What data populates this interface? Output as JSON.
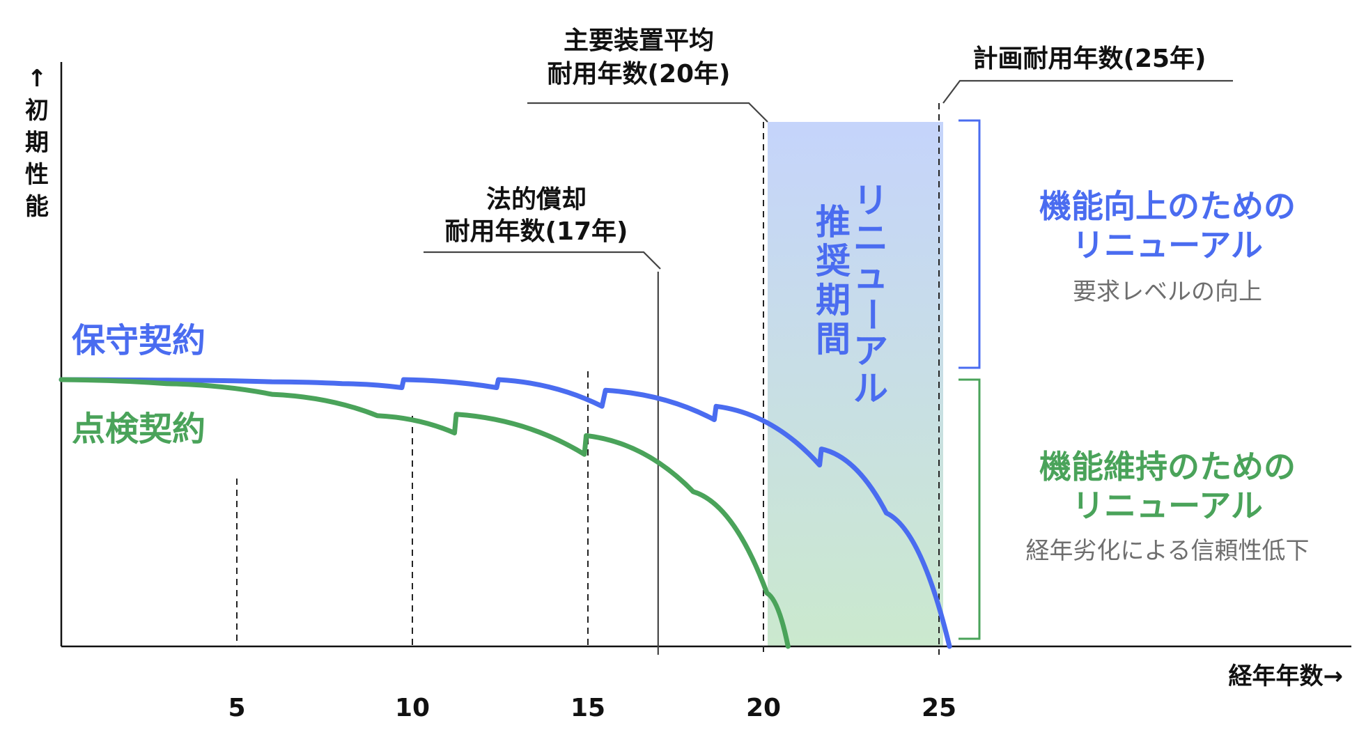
{
  "chart_data": {
    "type": "line",
    "y_axis_label": "↑初期性能",
    "x_axis_label": "経年年数→",
    "x_ticks": [
      5,
      10,
      15,
      20,
      25
    ],
    "series": [
      {
        "name": "保守契約",
        "color": "#4a6cf0",
        "x": [
          0,
          3,
          6,
          8,
          9.7,
          9.75,
          12.4,
          12.45,
          15.4,
          15.5,
          18.6,
          18.65,
          21.6,
          21.65,
          23.5,
          25.3
        ],
        "y": [
          1.0,
          0.998,
          0.992,
          0.985,
          0.97,
          1.0,
          0.97,
          1.0,
          0.9,
          0.96,
          0.85,
          0.9,
          0.68,
          0.74,
          0.5,
          0.0
        ]
      },
      {
        "name": "点検契約",
        "color": "#4aa35a",
        "x": [
          0,
          3,
          6,
          9,
          11.2,
          11.25,
          14.9,
          14.95,
          18,
          20.1,
          20.7
        ],
        "y": [
          1.0,
          0.985,
          0.945,
          0.865,
          0.8,
          0.87,
          0.72,
          0.79,
          0.58,
          0.2,
          0.0
        ]
      }
    ],
    "reference_lines": [
      {
        "x": 17,
        "label_line1": "法的償却",
        "label_line2": "耐用年数(17年)"
      },
      {
        "x": 20,
        "label_line1": "主要装置平均",
        "label_line2": "耐用年数(20年)"
      },
      {
        "x": 25,
        "label_line1": "計画耐用年数(25年)",
        "label_line2": ""
      }
    ],
    "shaded_region": {
      "x_from": 20,
      "x_to": 25,
      "label_col1": "推奨期間",
      "label_col2": "リニューアル",
      "color_top": "#c5d4fb",
      "color_bottom": "#cbe9ce"
    },
    "annotations": {
      "blue_title_line1": "機能向上のための",
      "blue_title_line2": "リニューアル",
      "blue_sub": "要求レベルの向上",
      "green_title_line1": "機能維持のための",
      "green_title_line2": "リニューアル",
      "green_sub": "経年劣化による信頼性低下"
    },
    "xlim": [
      0,
      25
    ],
    "ylim": [
      0,
      1
    ]
  }
}
